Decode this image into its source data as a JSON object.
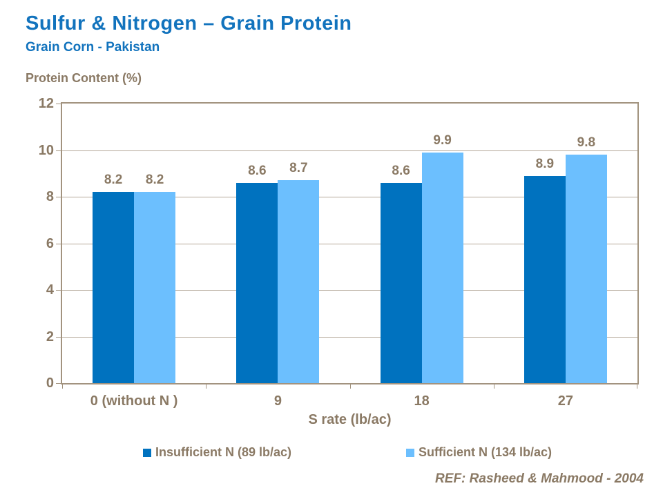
{
  "slide": {
    "title": "Sulfur & Nitrogen – Grain Protein",
    "subtitle": "Grain Corn - Pakistan",
    "reference": "REF: Rasheed & Mahmood - 2004"
  },
  "colors": {
    "title_blue": "#1273BD",
    "label_brown": "#8A7964",
    "grid": "#B3A697",
    "axis_border": "#A2937F",
    "series1": "#0072BF",
    "series2": "#6CBFFE"
  },
  "chart_data": {
    "type": "bar",
    "title": "Sulfur & Nitrogen – Grain Protein",
    "subtitle": "Grain Corn - Pakistan",
    "ylabel": "Protein Content (%)",
    "xlabel": "S rate (lb/ac)",
    "categories": [
      "0 (without N )",
      "9",
      "18",
      "27"
    ],
    "series": [
      {
        "name": "Insufficient N (89 lb/ac)",
        "color_key": "series1",
        "values": [
          8.2,
          8.6,
          8.6,
          8.9
        ]
      },
      {
        "name": "Sufficient N (134 lb/ac)",
        "color_key": "series2",
        "values": [
          8.2,
          8.7,
          9.9,
          9.8
        ]
      }
    ],
    "ylim": [
      0,
      12
    ],
    "ytick_step": 2,
    "grid": true,
    "legend_position": "bottom",
    "value_labels_shown": true
  }
}
